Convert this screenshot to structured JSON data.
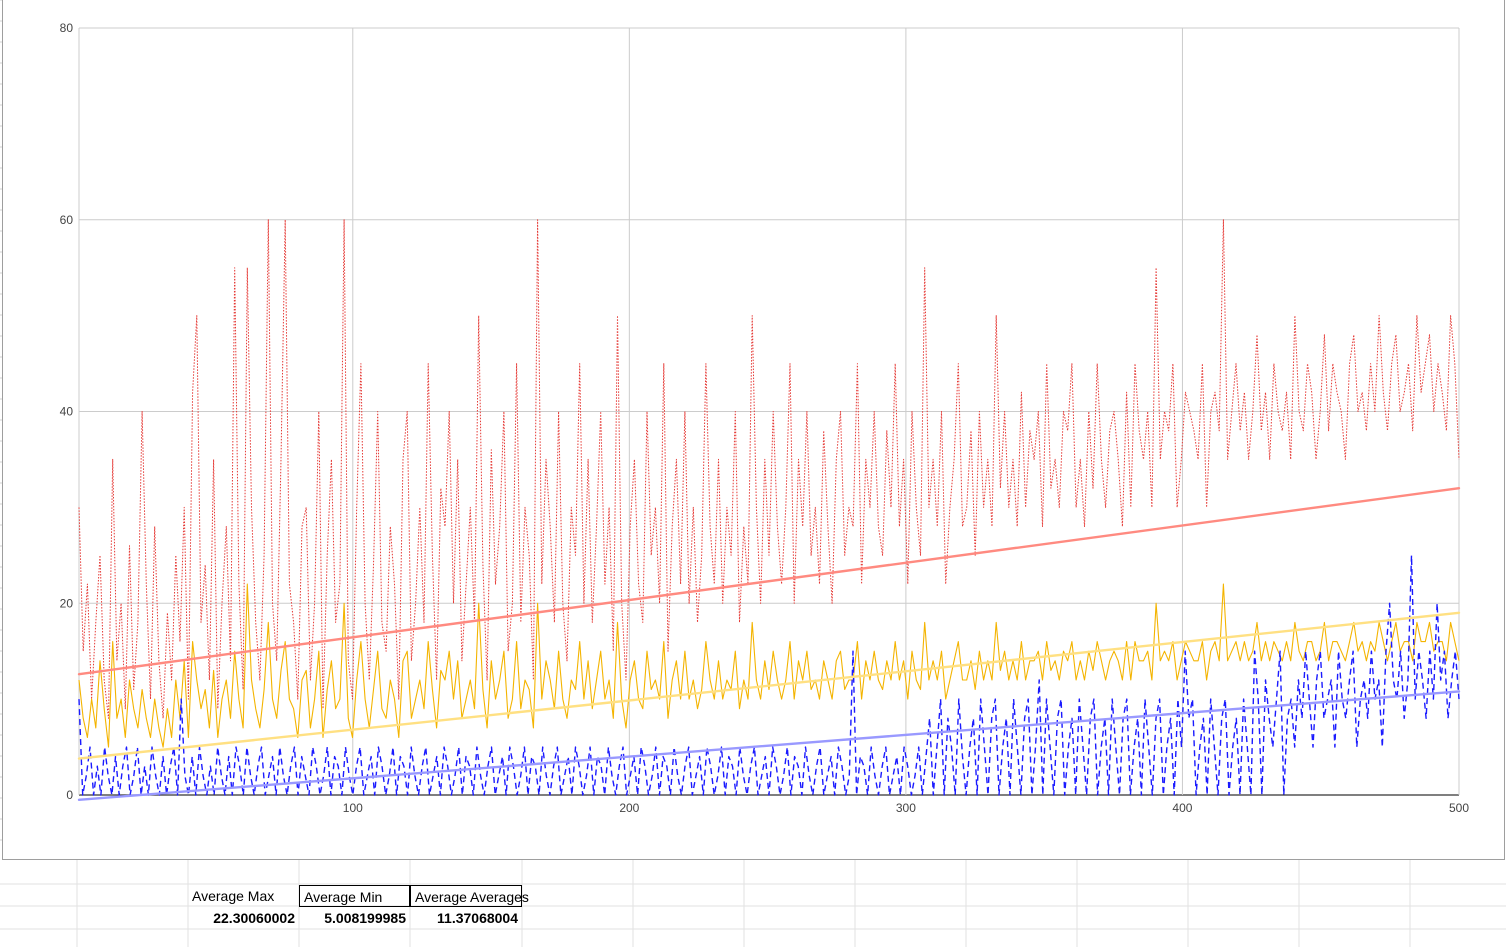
{
  "spreadsheet": {
    "headers": [
      "Average Max",
      "Average Min",
      "Average Averages"
    ],
    "values": [
      "22.30060002",
      "5.008199985",
      "11.37068004"
    ]
  },
  "chart_data": {
    "type": "line",
    "xlabel": "",
    "ylabel": "",
    "title": "",
    "xlim": [
      1,
      500
    ],
    "ylim": [
      0,
      80
    ],
    "x_ticks": [
      "100",
      "200",
      "300",
      "400",
      "500"
    ],
    "y_ticks": [
      "0",
      "20",
      "40",
      "60",
      "80"
    ],
    "grid": true,
    "legend": "none",
    "series": [
      {
        "style": "dotted",
        "color": "#e53935",
        "values": [
          30,
          15,
          22,
          10,
          18,
          25,
          12,
          8,
          35,
          14,
          20,
          9,
          26,
          11,
          18,
          40,
          22,
          10,
          28,
          14,
          8,
          19,
          12,
          25,
          16,
          30,
          10,
          42,
          50,
          18,
          24,
          12,
          35,
          9,
          20,
          28,
          14,
          55,
          22,
          11,
          55,
          30,
          18,
          12,
          25,
          60,
          20,
          14,
          35,
          60,
          22,
          18,
          10,
          28,
          30,
          12,
          20,
          40,
          9,
          25,
          35,
          18,
          22,
          60,
          14,
          10,
          30,
          45,
          20,
          12,
          24,
          40,
          18,
          15,
          28,
          22,
          10,
          35,
          40,
          14,
          20,
          30,
          18,
          45,
          25,
          12,
          32,
          28,
          40,
          20,
          35,
          14,
          22,
          30,
          18,
          50,
          24,
          12,
          36,
          22,
          28,
          40,
          15,
          20,
          45,
          18,
          30,
          25,
          12,
          60,
          22,
          35,
          28,
          18,
          40,
          20,
          14,
          30,
          25,
          45,
          20,
          35,
          18,
          28,
          40,
          22,
          30,
          15,
          50,
          20,
          12,
          28,
          35,
          22,
          18,
          40,
          25,
          30,
          20,
          45,
          15,
          28,
          35,
          22,
          40,
          20,
          30,
          18,
          25,
          45,
          28,
          22,
          35,
          20,
          30,
          25,
          40,
          18,
          28,
          22,
          50,
          30,
          20,
          35,
          25,
          40,
          28,
          22,
          30,
          45,
          20,
          35,
          28,
          40,
          25,
          30,
          22,
          38,
          28,
          20,
          35,
          40,
          25,
          30,
          28,
          45,
          22,
          35,
          30,
          40,
          28,
          25,
          38,
          30,
          45,
          28,
          35,
          22,
          40,
          30,
          25,
          55,
          30,
          35,
          28,
          40,
          22,
          30,
          35,
          45,
          28,
          30,
          38,
          25,
          40,
          30,
          35,
          28,
          50,
          32,
          40,
          30,
          35,
          28,
          42,
          30,
          38,
          35,
          40,
          28,
          45,
          32,
          35,
          30,
          40,
          38,
          45,
          30,
          35,
          28,
          40,
          32,
          45,
          35,
          30,
          38,
          40,
          35,
          28,
          42,
          30,
          45,
          38,
          35,
          40,
          30,
          55,
          35,
          40,
          38,
          45,
          30,
          35,
          42,
          40,
          38,
          35,
          45,
          30,
          40,
          42,
          38,
          60,
          35,
          40,
          45,
          38,
          42,
          35,
          40,
          48,
          38,
          42,
          35,
          45,
          40,
          38,
          42,
          35,
          50,
          40,
          38,
          45,
          42,
          35,
          40,
          48,
          38,
          45,
          42,
          40,
          35,
          45,
          48,
          40,
          42,
          38,
          45,
          40,
          50,
          42,
          38,
          45,
          48,
          40,
          42,
          45,
          38,
          50,
          42,
          45,
          48,
          40,
          45,
          42,
          38,
          50,
          45,
          35
        ]
      },
      {
        "style": "solid",
        "color": "#f4b400",
        "values": [
          12,
          8,
          6,
          10,
          7,
          14,
          9,
          5,
          16,
          8,
          10,
          6,
          12,
          9,
          7,
          11,
          8,
          6,
          10,
          7,
          5,
          9,
          6,
          12,
          8,
          14,
          6,
          16,
          12,
          9,
          11,
          7,
          13,
          6,
          10,
          12,
          8,
          15,
          10,
          7,
          22,
          12,
          9,
          7,
          11,
          18,
          10,
          8,
          13,
          16,
          10,
          9,
          6,
          12,
          13,
          7,
          10,
          15,
          6,
          11,
          14,
          9,
          10,
          20,
          8,
          6,
          12,
          16,
          10,
          7,
          11,
          15,
          9,
          8,
          12,
          10,
          6,
          14,
          15,
          8,
          10,
          12,
          9,
          16,
          11,
          7,
          13,
          12,
          15,
          10,
          14,
          8,
          10,
          12,
          9,
          20,
          11,
          7,
          14,
          10,
          12,
          15,
          8,
          10,
          16,
          9,
          12,
          11,
          7,
          20,
          10,
          14,
          12,
          9,
          15,
          10,
          8,
          12,
          11,
          16,
          10,
          14,
          9,
          12,
          15,
          10,
          12,
          8,
          18,
          10,
          7,
          12,
          14,
          10,
          9,
          15,
          11,
          12,
          10,
          16,
          8,
          12,
          14,
          10,
          15,
          10,
          12,
          9,
          11,
          16,
          12,
          10,
          14,
          10,
          12,
          11,
          15,
          9,
          12,
          10,
          18,
          12,
          10,
          14,
          11,
          15,
          12,
          10,
          12,
          16,
          10,
          14,
          12,
          15,
          11,
          12,
          10,
          14,
          12,
          10,
          14,
          15,
          11,
          12,
          12,
          16,
          10,
          14,
          12,
          15,
          12,
          11,
          14,
          12,
          16,
          12,
          14,
          10,
          15,
          12,
          11,
          18,
          12,
          14,
          12,
          15,
          10,
          12,
          14,
          16,
          12,
          12,
          14,
          11,
          15,
          12,
          14,
          12,
          18,
          13,
          15,
          12,
          14,
          12,
          16,
          12,
          14,
          14,
          15,
          12,
          16,
          13,
          14,
          12,
          15,
          14,
          16,
          12,
          14,
          12,
          15,
          13,
          16,
          14,
          12,
          14,
          15,
          14,
          12,
          16,
          12,
          16,
          14,
          14,
          15,
          12,
          20,
          14,
          15,
          14,
          16,
          12,
          14,
          16,
          15,
          14,
          14,
          16,
          12,
          15,
          16,
          14,
          22,
          14,
          15,
          16,
          14,
          16,
          14,
          15,
          18,
          14,
          16,
          14,
          16,
          15,
          14,
          16,
          14,
          18,
          15,
          14,
          16,
          16,
          14,
          15,
          18,
          14,
          16,
          16,
          15,
          14,
          16,
          18,
          15,
          16,
          14,
          16,
          15,
          18,
          16,
          14,
          16,
          18,
          15,
          16,
          16,
          14,
          18,
          16,
          16,
          18,
          15,
          16,
          16,
          14,
          18,
          16,
          14
        ]
      },
      {
        "style": "dashed",
        "color": "#1a1aff",
        "values": [
          10,
          0,
          2,
          5,
          0,
          3,
          0,
          5,
          2,
          0,
          4,
          0,
          3,
          5,
          0,
          2,
          5,
          0,
          3,
          0,
          5,
          2,
          0,
          4,
          0,
          3,
          5,
          0,
          10,
          2,
          0,
          4,
          0,
          5,
          2,
          0,
          3,
          0,
          5,
          2,
          0,
          4,
          0,
          5,
          3,
          0,
          5,
          2,
          0,
          3,
          5,
          0,
          2,
          4,
          0,
          5,
          2,
          0,
          3,
          5,
          0,
          4,
          2,
          0,
          5,
          3,
          0,
          2,
          5,
          0,
          4,
          3,
          0,
          5,
          2,
          0,
          3,
          5,
          0,
          2,
          4,
          0,
          5,
          3,
          0,
          2,
          5,
          0,
          4,
          3,
          0,
          5,
          2,
          0,
          3,
          5,
          0,
          2,
          4,
          0,
          5,
          3,
          0,
          2,
          5,
          0,
          4,
          3,
          0,
          5,
          2,
          0,
          3,
          5,
          0,
          2,
          4,
          0,
          5,
          3,
          0,
          2,
          5,
          0,
          4,
          3,
          0,
          5,
          2,
          0,
          3,
          5,
          0,
          2,
          4,
          0,
          5,
          3,
          0,
          2,
          5,
          0,
          4,
          3,
          0,
          5,
          2,
          0,
          3,
          5,
          0,
          2,
          4,
          0,
          5,
          3,
          0,
          2,
          5,
          0,
          4,
          3,
          0,
          5,
          2,
          0,
          3,
          5,
          0,
          2,
          4,
          0,
          5,
          3,
          0,
          2,
          5,
          0,
          4,
          3,
          0,
          5,
          2,
          0,
          3,
          5,
          0,
          2,
          4,
          0,
          5,
          3,
          0,
          2,
          5,
          0,
          4,
          3,
          0,
          5,
          2,
          0,
          3,
          5,
          0,
          2,
          4,
          0,
          5,
          3,
          0,
          2,
          15,
          0,
          4,
          3,
          0,
          5,
          2,
          0,
          3,
          5,
          0,
          2,
          4,
          0,
          5,
          3,
          0,
          2,
          5,
          0,
          4,
          8,
          0,
          5,
          10,
          0,
          8,
          5,
          0,
          10,
          4,
          0,
          5,
          8,
          0,
          10,
          5,
          0,
          8,
          10,
          0,
          5,
          8,
          0,
          10,
          5,
          0,
          8,
          10,
          0,
          5,
          12,
          0,
          10,
          5,
          0,
          8,
          10,
          0,
          5,
          8,
          0,
          10,
          5,
          0,
          8,
          10,
          0,
          5,
          8,
          0,
          10,
          5,
          0,
          8,
          10,
          0,
          5,
          8,
          0,
          10,
          5,
          0,
          8,
          10,
          0,
          5,
          8,
          0,
          10,
          5,
          15,
          8,
          10,
          0,
          5,
          8,
          0,
          10,
          5,
          0,
          8,
          10,
          0,
          5,
          8,
          0,
          10,
          5,
          0,
          15,
          10,
          0,
          12,
          8,
          5,
          10,
          15,
          0,
          8,
          10,
          5,
          12,
          8,
          15,
          10,
          5,
          12,
          15,
          8,
          10,
          12,
          5,
          15,
          10,
          8,
          12,
          15,
          5,
          10,
          12,
          8,
          15,
          10,
          12,
          5,
          15,
          20,
          12,
          10,
          15,
          8,
          12,
          25,
          10,
          15,
          12,
          8,
          15,
          10,
          20,
          12,
          15,
          8,
          12,
          15,
          10
        ]
      }
    ],
    "trendlines": [
      {
        "color": "#ff8a80",
        "x": [
          1,
          500
        ],
        "y": [
          12.6,
          32.0
        ]
      },
      {
        "color": "#ffe082",
        "x": [
          1,
          500
        ],
        "y": [
          3.8,
          19.0
        ]
      },
      {
        "color": "#9999ff",
        "x": [
          1,
          500
        ],
        "y": [
          -0.5,
          10.8
        ]
      }
    ]
  }
}
